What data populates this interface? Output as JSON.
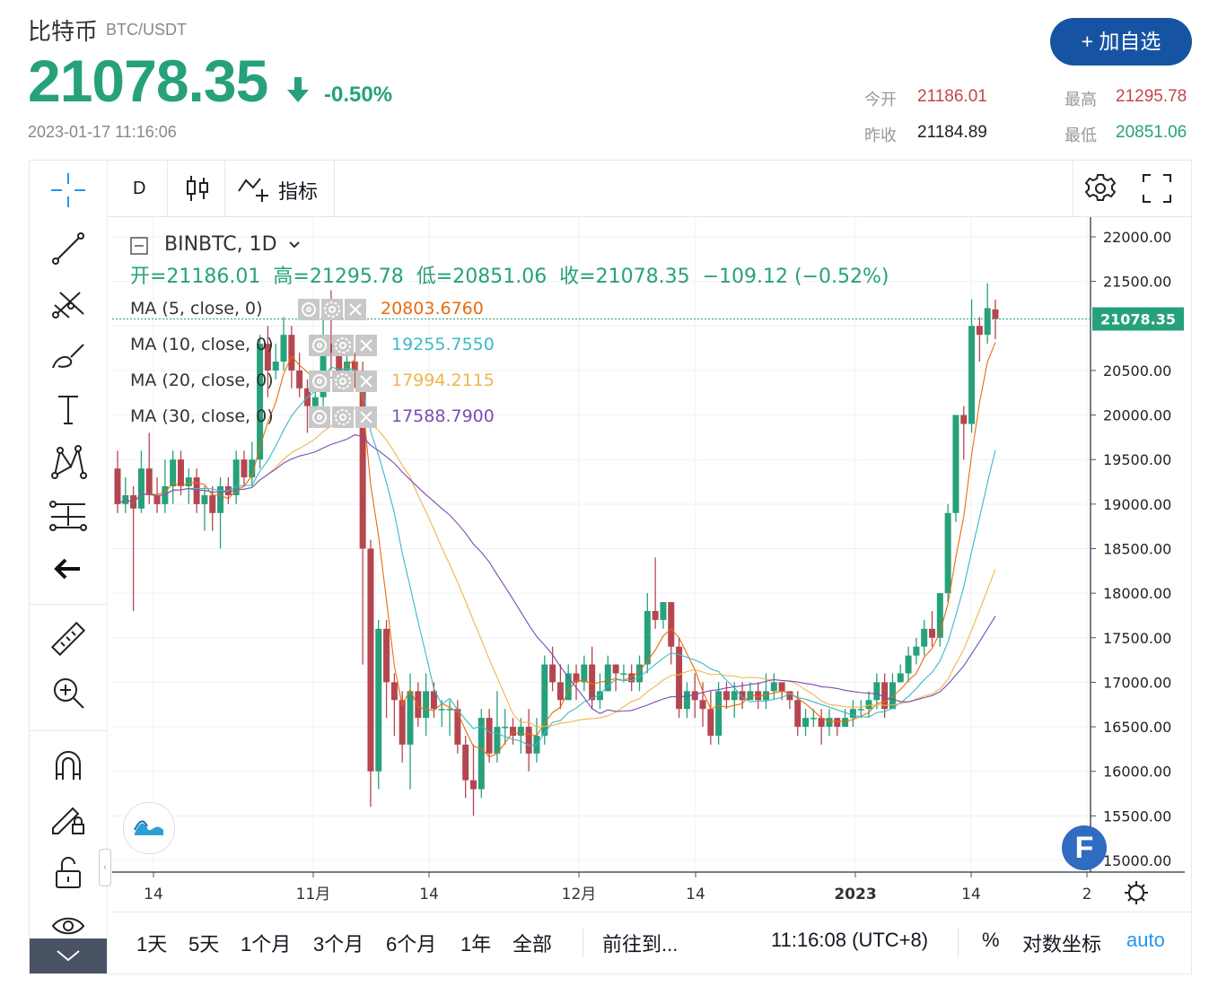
{
  "header": {
    "name": "比特币",
    "pair": "BTC/USDT",
    "price": "21078.35",
    "change_pct": "-0.50%",
    "datetime": "2023-01-17 11:16:06",
    "add_button": "+ 加自选",
    "stats": {
      "open_label": "今开",
      "open_value": "21186.01",
      "high_label": "最高",
      "high_value": "21295.78",
      "prev_close_label": "昨收",
      "prev_close_value": "21184.89",
      "low_label": "最低",
      "low_value": "20851.06"
    }
  },
  "colors": {
    "up": "#26a17b",
    "down": "#b5464f",
    "accent": "#1654a3",
    "ma5": "#e66d0e",
    "ma10": "#3cb8c8",
    "ma20": "#f0b54a",
    "ma30": "#7b4db3"
  },
  "toolbar": {
    "interval": "D",
    "indicators_label": "指标"
  },
  "left_tools": [
    "crosshair-icon",
    "trend-line-icon",
    "pitchfork-icon",
    "brush-icon",
    "text-icon",
    "pattern-icon",
    "projection-icon",
    "back-arrow-icon",
    "ruler-icon",
    "zoom-in-icon",
    "magnet-icon",
    "lock-drawing-icon",
    "unlock-icon",
    "eye-icon",
    "chevron-down-icon"
  ],
  "legend": {
    "symbol": "BINBTC, 1D",
    "ohlc": "开=21186.01  高=21295.78  低=20851.06  收=21078.35  −109.12 (−0.52%)",
    "ma": [
      {
        "label": "MA (5, close, 0)",
        "value": "20803.6760"
      },
      {
        "label": "MA (10, close, 0)",
        "value": "19255.7550"
      },
      {
        "label": "MA (20, close, 0)",
        "value": "17994.2115"
      },
      {
        "label": "MA (30, close, 0)",
        "value": "17588.7900"
      }
    ]
  },
  "chart_data": {
    "type": "candlestick",
    "y_ticks": [
      "22000.00",
      "21500.00",
      "20500.00",
      "20000.00",
      "19500.00",
      "19000.00",
      "18500.00",
      "18000.00",
      "17500.00",
      "17000.00",
      "16500.00",
      "16000.00",
      "15500.00",
      "15000.00"
    ],
    "ylim": [
      15000,
      22000
    ],
    "last_price_label": "21078.35",
    "x_ticks": [
      "14",
      "11月",
      "14",
      "12月",
      "14",
      "2023",
      "14",
      "2"
    ],
    "candles": [
      [
        19400,
        19000,
        19600,
        18900
      ],
      [
        19000,
        19100,
        19300,
        18900
      ],
      [
        19100,
        18950,
        19200,
        17800
      ],
      [
        18950,
        19400,
        19600,
        18900
      ],
      [
        19400,
        19100,
        19800,
        19000
      ],
      [
        19100,
        19000,
        19300,
        18900
      ],
      [
        19000,
        19200,
        19500,
        18900
      ],
      [
        19200,
        19500,
        19600,
        19000
      ],
      [
        19500,
        19200,
        19600,
        19100
      ],
      [
        19200,
        19300,
        19400,
        19000
      ],
      [
        19300,
        19000,
        19400,
        18900
      ],
      [
        19000,
        19100,
        19200,
        18700
      ],
      [
        19100,
        18900,
        19200,
        18700
      ],
      [
        18900,
        19200,
        19300,
        18500
      ],
      [
        19200,
        19100,
        19300,
        19000
      ],
      [
        19100,
        19500,
        19600,
        19000
      ],
      [
        19500,
        19300,
        19600,
        19200
      ],
      [
        19300,
        19500,
        19700,
        19200
      ],
      [
        19500,
        20800,
        20900,
        19400
      ],
      [
        20800,
        20500,
        21000,
        20200
      ],
      [
        20500,
        20600,
        20800,
        20400
      ],
      [
        20600,
        20900,
        21100,
        20500
      ],
      [
        20900,
        20500,
        21000,
        20300
      ],
      [
        20500,
        20300,
        20700,
        20200
      ],
      [
        20300,
        20100,
        20400,
        19800
      ],
      [
        20100,
        20200,
        20500,
        20000
      ],
      [
        20200,
        20800,
        21200,
        20100
      ],
      [
        20800,
        20700,
        21400,
        20500
      ],
      [
        20700,
        20500,
        20900,
        20400
      ],
      [
        20500,
        20600,
        20800,
        20400
      ],
      [
        20600,
        20500,
        20700,
        20300
      ],
      [
        20500,
        18500,
        20600,
        17200
      ],
      [
        18500,
        16000,
        18600,
        15600
      ],
      [
        16000,
        17600,
        17700,
        15800
      ],
      [
        17600,
        17000,
        17700,
        16600
      ],
      [
        17000,
        16800,
        17100,
        16400
      ],
      [
        16800,
        16300,
        16900,
        16100
      ],
      [
        16300,
        16900,
        17100,
        15800
      ],
      [
        16900,
        16600,
        17000,
        16500
      ],
      [
        16600,
        16900,
        17100,
        16400
      ],
      [
        16900,
        16700,
        17000,
        16600
      ],
      [
        16700,
        16700,
        16800,
        16500
      ],
      [
        16700,
        16700,
        16800,
        16400
      ],
      [
        16700,
        16300,
        16800,
        16200
      ],
      [
        16300,
        15900,
        16400,
        15700
      ],
      [
        15900,
        15800,
        16300,
        15500
      ],
      [
        15800,
        16600,
        16700,
        15700
      ],
      [
        16600,
        16200,
        16700,
        16100
      ],
      [
        16200,
        16500,
        16900,
        16100
      ],
      [
        16500,
        16500,
        16700,
        16300
      ],
      [
        16500,
        16400,
        16600,
        16300
      ],
      [
        16400,
        16500,
        16600,
        16200
      ],
      [
        16500,
        16200,
        16700,
        16000
      ],
      [
        16200,
        16400,
        16600,
        16100
      ],
      [
        16400,
        17200,
        17300,
        16300
      ],
      [
        17200,
        17000,
        17400,
        16900
      ],
      [
        17000,
        16800,
        17200,
        16700
      ],
      [
        16800,
        17100,
        17200,
        16800
      ],
      [
        17100,
        17000,
        17200,
        16800
      ],
      [
        17000,
        17200,
        17300,
        16900
      ],
      [
        17200,
        16800,
        17400,
        16700
      ],
      [
        16800,
        16900,
        17100,
        16700
      ],
      [
        16900,
        17200,
        17300,
        16900
      ],
      [
        17200,
        17100,
        17200,
        16900
      ],
      [
        17100,
        17100,
        17200,
        17000
      ],
      [
        17100,
        17000,
        17200,
        16900
      ],
      [
        17000,
        17200,
        17300,
        16900
      ],
      [
        17200,
        17800,
        18000,
        17100
      ],
      [
        17800,
        17700,
        18400,
        17600
      ],
      [
        17700,
        17900,
        17900,
        17600
      ],
      [
        17900,
        17400,
        17900,
        17200
      ],
      [
        17400,
        16700,
        17500,
        16600
      ],
      [
        16700,
        16900,
        17000,
        16600
      ],
      [
        16900,
        16800,
        17100,
        16600
      ],
      [
        16800,
        16700,
        17000,
        16500
      ],
      [
        16700,
        16400,
        16900,
        16300
      ],
      [
        16400,
        16900,
        17000,
        16300
      ],
      [
        16900,
        16800,
        17000,
        16700
      ],
      [
        16800,
        16900,
        17000,
        16600
      ],
      [
        16900,
        16800,
        17000,
        16700
      ],
      [
        16800,
        16900,
        17000,
        16800
      ],
      [
        16900,
        16800,
        17000,
        16700
      ],
      [
        16800,
        16900,
        17100,
        16700
      ],
      [
        16900,
        17000,
        17100,
        16800
      ],
      [
        17000,
        16900,
        17000,
        16800
      ],
      [
        16900,
        16800,
        16900,
        16700
      ],
      [
        16800,
        16500,
        16900,
        16400
      ],
      [
        16500,
        16600,
        16700,
        16400
      ],
      [
        16600,
        16600,
        16700,
        16500
      ],
      [
        16600,
        16500,
        16700,
        16300
      ],
      [
        16500,
        16600,
        16700,
        16400
      ],
      [
        16600,
        16500,
        16600,
        16400
      ],
      [
        16500,
        16600,
        16700,
        16500
      ],
      [
        16600,
        16700,
        16800,
        16500
      ],
      [
        16700,
        16700,
        16800,
        16600
      ],
      [
        16700,
        16800,
        16900,
        16600
      ],
      [
        16800,
        17000,
        17100,
        16700
      ],
      [
        17000,
        16700,
        17100,
        16600
      ],
      [
        16700,
        17000,
        17100,
        16700
      ],
      [
        17000,
        17100,
        17200,
        17000
      ],
      [
        17100,
        17300,
        17400,
        17000
      ],
      [
        17300,
        17400,
        17500,
        17200
      ],
      [
        17400,
        17600,
        17700,
        17300
      ],
      [
        17600,
        17500,
        17800,
        17400
      ],
      [
        17500,
        18000,
        18000,
        17400
      ],
      [
        18000,
        18900,
        19000,
        17900
      ],
      [
        18900,
        20000,
        20000,
        18800
      ],
      [
        20000,
        19900,
        20100,
        19500
      ],
      [
        19900,
        21000,
        21300,
        19800
      ],
      [
        21000,
        20900,
        21100,
        20600
      ],
      [
        20900,
        21200,
        21480,
        20800
      ],
      [
        21186.01,
        21078.35,
        21295.78,
        20851.06
      ]
    ],
    "ma": [
      {
        "name": "MA (5, close, 0)",
        "value": 20803.676
      },
      {
        "name": "MA (10, close, 0)",
        "value": 19255.755
      },
      {
        "name": "MA (20, close, 0)",
        "value": 17994.2115
      },
      {
        "name": "MA (30, close, 0)",
        "value": 17588.79
      }
    ]
  },
  "bottom": {
    "ranges": [
      "1天",
      "5天",
      "1个月",
      "3个月",
      "6个月",
      "1年",
      "全部"
    ],
    "goto": "前往到...",
    "clock": "11:16:08 (UTC+8)",
    "percent": "%",
    "log": "对数坐标",
    "auto": "auto"
  }
}
